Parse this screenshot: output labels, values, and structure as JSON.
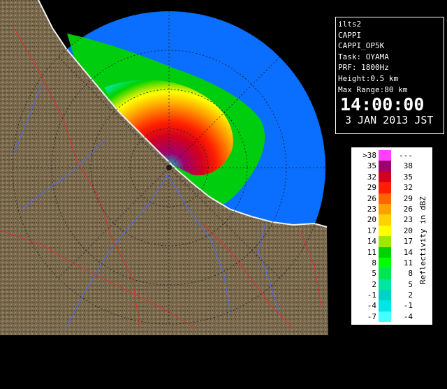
{
  "info": {
    "lines": [
      "ilts2",
      "CAPPI",
      "CAPPI_OP5K",
      "Task: OYAMA",
      "PRF: 1800Hz",
      "Height:0.5 km",
      "Max Range:80 km"
    ],
    "time": "14:00:00",
    "date": "3 JAN 2013 JST"
  },
  "legend": {
    "title": "Reflectivity in dBZ",
    "rows": [
      {
        "low": ">38",
        "high": "---",
        "color": "#ff40ff"
      },
      {
        "low": "35",
        "high": "38",
        "color": "#a0006e"
      },
      {
        "low": "32",
        "high": "35",
        "color": "#d2001e"
      },
      {
        "low": "29",
        "high": "32",
        "color": "#ff1e00"
      },
      {
        "low": "26",
        "high": "29",
        "color": "#ff6400"
      },
      {
        "low": "23",
        "high": "26",
        "color": "#ffa000"
      },
      {
        "low": "20",
        "high": "23",
        "color": "#ffd200"
      },
      {
        "low": "17",
        "high": "20",
        "color": "#ffff00"
      },
      {
        "low": "14",
        "high": "17",
        "color": "#a0e600"
      },
      {
        "low": "11",
        "high": "14",
        "color": "#00d200"
      },
      {
        "low": "8",
        "high": "11",
        "color": "#00ff00"
      },
      {
        "low": "5",
        "high": "8",
        "color": "#00e650"
      },
      {
        "low": "2",
        "high": "5",
        "color": "#00e6a0"
      },
      {
        "low": "-1",
        "high": "2",
        "color": "#00d2c8"
      },
      {
        "low": "-4",
        "high": "-1",
        "color": "#00e6e6"
      },
      {
        "low": "-7",
        "high": "-4",
        "color": "#46ffff"
      }
    ]
  },
  "map_colors": {
    "range_disc": "#0a6eff",
    "terrain": "#7a6a4e",
    "coast": "#f0f0f0"
  }
}
